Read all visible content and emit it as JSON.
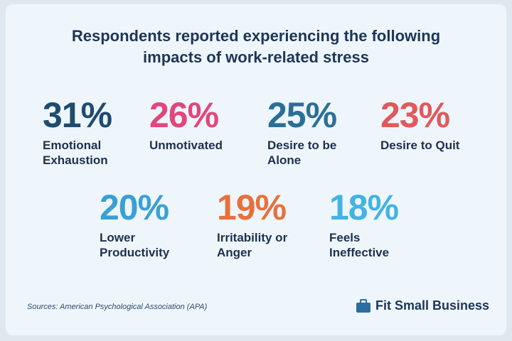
{
  "title": "Respondents reported experiencing the following impacts of work-related stress",
  "stats": [
    {
      "figure": "31%",
      "label": "Emotional Exhaustion",
      "color": "#1f4b6e"
    },
    {
      "figure": "26%",
      "label": "Unmotivated",
      "color": "#e1467c"
    },
    {
      "figure": "25%",
      "label": "Desire to be Alone",
      "color": "#2b6f98"
    },
    {
      "figure": "23%",
      "label": "Desire to Quit",
      "color": "#e2585b"
    },
    {
      "figure": "20%",
      "label": "Lower Productivity",
      "color": "#3aa0d2"
    },
    {
      "figure": "19%",
      "label": "Irritability or Anger",
      "color": "#e8703b"
    },
    {
      "figure": "18%",
      "label": "Feels Ineffective",
      "color": "#43b3e2"
    }
  ],
  "source": "Sources: American Psychological Association (APA)",
  "brand": "Fit Small Business"
}
